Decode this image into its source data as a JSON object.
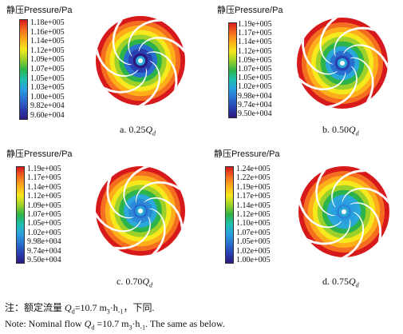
{
  "panels": [
    {
      "legend_title": "静压Pressure/Pa",
      "ticks": [
        "1.18e+005",
        "1.16e+005",
        "1.14e+005",
        "1.12e+005",
        "1.09e+005",
        "1.07e+005",
        "1.05e+005",
        "1.03e+005",
        "1.00e+005",
        "9.82e+004",
        "9.60e+004"
      ],
      "caption_prefix": "a. 0.25",
      "caption_q": "Q",
      "caption_sub": "d"
    },
    {
      "legend_title": "静压Pressure/Pa",
      "ticks": [
        "1.19e+005",
        "1.17e+005",
        "1.14e+005",
        "1.12e+005",
        "1.09e+005",
        "1.07e+005",
        "1.05e+005",
        "1.02e+005",
        "9.98e+004",
        "9.74e+004",
        "9.50e+004"
      ],
      "caption_prefix": "b. 0.50",
      "caption_q": "Q",
      "caption_sub": "d"
    },
    {
      "legend_title": "静压Pressure/Pa",
      "ticks": [
        "1.19e+005",
        "1.17e+005",
        "1.14e+005",
        "1.12e+005",
        "1.09e+005",
        "1.07e+005",
        "1.05e+005",
        "1.02e+005",
        "9.98e+004",
        "9.74e+004",
        "9.50e+004"
      ],
      "caption_prefix": "c. 0.70",
      "caption_q": "Q",
      "caption_sub": "d"
    },
    {
      "legend_title": "静压Pressure/Pa",
      "ticks": [
        "1.24e+005",
        "1.22e+005",
        "1.19e+005",
        "1.17e+005",
        "1.14e+005",
        "1.12e+005",
        "1.10e+005",
        "1.07e+005",
        "1.05e+005",
        "1.02e+005",
        "1.00e+005"
      ],
      "caption_prefix": "d. 0.75",
      "caption_q": "Q",
      "caption_sub": "d"
    }
  ],
  "note_cn": {
    "prefix": "注：额定流量 ",
    "q": "Q",
    "sub": "d",
    "value": "=10.7 m",
    "unit_exp": "3",
    "unit_mid": "·h",
    "unit_exp2": "-1",
    "suffix": "，下同."
  },
  "note_en": {
    "prefix": "Note: Nominal flow ",
    "q": "Q",
    "sub": "d",
    "value": " =10.7 m",
    "unit_exp": "3",
    "unit_mid": "·h",
    "unit_exp2": "-1",
    "suffix": ". The same as below."
  },
  "colors": {
    "colorbar_gradient": [
      "#d7191c",
      "#f46d20",
      "#fdae1a",
      "#f5e81c",
      "#9bd12a",
      "#2cb34a",
      "#1ec0b0",
      "#2a9fe0",
      "#2a6fd0",
      "#2a3fb0",
      "#2a1a80"
    ],
    "disc_rings": [
      "#d7191c",
      "#f46d20",
      "#fdae1a",
      "#f5e81c",
      "#9bd12a",
      "#2cb34a",
      "#2aa8d8",
      "#2a6fd0"
    ],
    "blade": "#ffffff"
  }
}
